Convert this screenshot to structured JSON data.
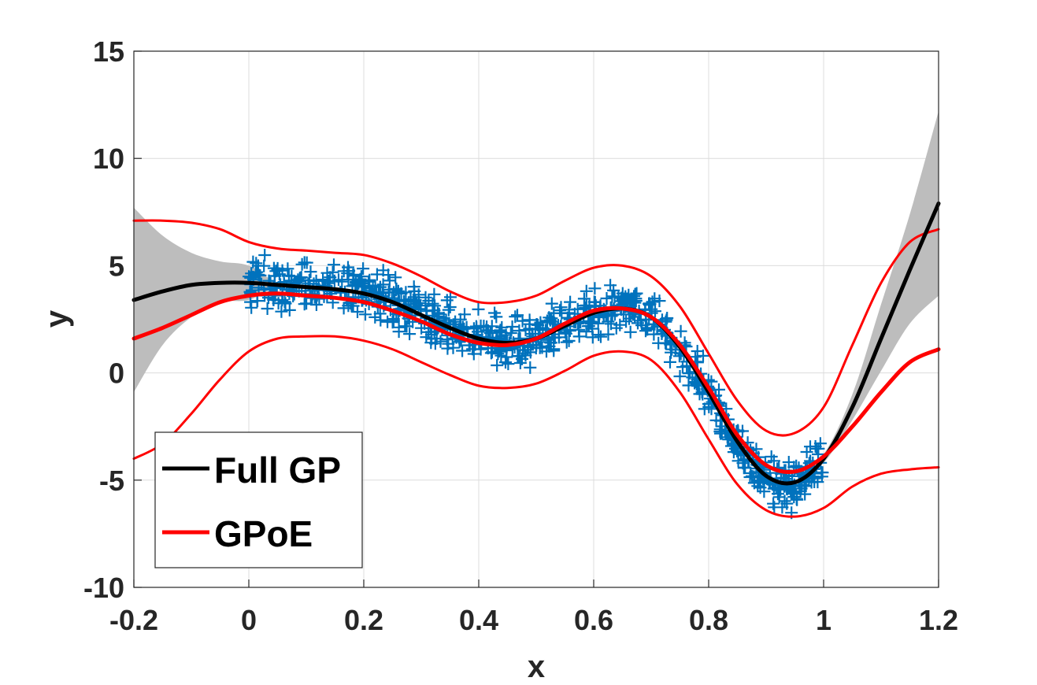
{
  "chart_data": {
    "type": "line",
    "title": "",
    "xlabel": "x",
    "ylabel": "y",
    "xlim": [
      -0.2,
      1.2
    ],
    "ylim": [
      -10,
      15
    ],
    "xticks": [
      "-0.2",
      "0",
      "0.2",
      "0.4",
      "0.6",
      "0.8",
      "1",
      "1.2"
    ],
    "yticks": [
      "-10",
      "-5",
      "0",
      "5",
      "10",
      "15"
    ],
    "grid": true,
    "legend_position": "bottom-left",
    "legend": [
      {
        "name": "Full GP",
        "color": "#000000"
      },
      {
        "name": "GPoE",
        "color": "#ff0000"
      }
    ],
    "observations": {
      "marker": "plus",
      "color": "#0072bd",
      "x_range": [
        0,
        1
      ],
      "noise_amplitude": 1.0,
      "count": 900
    },
    "series": [
      {
        "name": "Full GP",
        "role": "mean",
        "color": "#000000",
        "x": [
          -0.2,
          -0.15,
          -0.1,
          -0.05,
          0,
          0.05,
          0.1,
          0.15,
          0.2,
          0.25,
          0.3,
          0.35,
          0.4,
          0.45,
          0.5,
          0.55,
          0.6,
          0.65,
          0.7,
          0.75,
          0.8,
          0.85,
          0.9,
          0.95,
          1.0,
          1.05,
          1.1,
          1.15,
          1.2
        ],
        "y": [
          3.4,
          3.8,
          4.1,
          4.2,
          4.2,
          4.1,
          4.0,
          3.9,
          3.7,
          3.3,
          2.7,
          2.1,
          1.6,
          1.4,
          1.6,
          2.2,
          2.8,
          3.0,
          2.6,
          1.2,
          -0.9,
          -3.2,
          -4.8,
          -5.1,
          -4.0,
          -1.6,
          1.6,
          4.8,
          7.9
        ]
      },
      {
        "name": "Full GP confidence band",
        "role": "band",
        "color": "#bdbdbd",
        "x": [
          -0.2,
          -0.15,
          -0.1,
          -0.05,
          0,
          0.05,
          0.1,
          0.15,
          0.2,
          0.25,
          0.3,
          0.35,
          0.4,
          0.45,
          0.5,
          0.55,
          0.6,
          0.65,
          0.7,
          0.75,
          0.8,
          0.85,
          0.9,
          0.95,
          1.0,
          1.05,
          1.1,
          1.15,
          1.2
        ],
        "upper": [
          7.7,
          6.4,
          5.6,
          5.2,
          5.0,
          4.2,
          4.1,
          4.0,
          3.8,
          3.4,
          2.8,
          2.2,
          1.7,
          1.5,
          1.7,
          2.3,
          2.9,
          3.1,
          2.7,
          1.3,
          -0.8,
          -3.1,
          -4.7,
          -5.0,
          -3.8,
          -1.0,
          3.2,
          7.4,
          12.2
        ],
        "lower": [
          -0.9,
          1.3,
          2.6,
          3.3,
          3.4,
          4.0,
          3.9,
          3.8,
          3.6,
          3.2,
          2.6,
          2.0,
          1.5,
          1.3,
          1.5,
          2.1,
          2.7,
          2.9,
          2.5,
          1.1,
          -1.0,
          -3.3,
          -4.9,
          -5.2,
          -4.2,
          -2.2,
          0.1,
          2.3,
          3.6
        ]
      },
      {
        "name": "GPoE",
        "role": "mean",
        "color": "#ff0000",
        "x": [
          -0.2,
          -0.15,
          -0.1,
          -0.05,
          0,
          0.05,
          0.1,
          0.15,
          0.2,
          0.25,
          0.3,
          0.35,
          0.4,
          0.45,
          0.5,
          0.55,
          0.6,
          0.65,
          0.7,
          0.75,
          0.8,
          0.85,
          0.9,
          0.95,
          1.0,
          1.05,
          1.1,
          1.15,
          1.2
        ],
        "y": [
          1.6,
          2.1,
          2.7,
          3.3,
          3.6,
          3.7,
          3.6,
          3.5,
          3.3,
          2.9,
          2.4,
          1.8,
          1.4,
          1.3,
          1.6,
          2.3,
          2.9,
          3.0,
          2.6,
          1.3,
          -0.7,
          -2.9,
          -4.3,
          -4.6,
          -3.9,
          -2.5,
          -0.9,
          0.5,
          1.1
        ]
      },
      {
        "name": "GPoE upper bound",
        "role": "bound",
        "color": "#ff0000",
        "x": [
          -0.2,
          -0.15,
          -0.1,
          -0.05,
          0,
          0.05,
          0.1,
          0.15,
          0.2,
          0.25,
          0.3,
          0.35,
          0.4,
          0.45,
          0.5,
          0.55,
          0.6,
          0.65,
          0.7,
          0.75,
          0.8,
          0.85,
          0.9,
          0.95,
          1.0,
          1.05,
          1.1,
          1.15,
          1.2
        ],
        "y": [
          7.1,
          7.1,
          7.0,
          6.7,
          6.1,
          5.8,
          5.7,
          5.6,
          5.5,
          5.1,
          4.5,
          3.8,
          3.3,
          3.3,
          3.6,
          4.3,
          4.9,
          5.0,
          4.5,
          3.1,
          0.9,
          -1.3,
          -2.7,
          -2.8,
          -1.6,
          1.3,
          4.2,
          6.1,
          6.7
        ]
      },
      {
        "name": "GPoE lower bound",
        "role": "bound",
        "color": "#ff0000",
        "x": [
          -0.2,
          -0.15,
          -0.1,
          -0.05,
          0,
          0.05,
          0.1,
          0.15,
          0.2,
          0.25,
          0.3,
          0.35,
          0.4,
          0.45,
          0.5,
          0.55,
          0.6,
          0.65,
          0.7,
          0.75,
          0.8,
          0.85,
          0.9,
          0.95,
          1.0,
          1.05,
          1.1,
          1.15,
          1.2
        ],
        "y": [
          -4.0,
          -3.3,
          -1.9,
          -0.3,
          1.0,
          1.6,
          1.7,
          1.7,
          1.5,
          1.1,
          0.5,
          -0.1,
          -0.6,
          -0.7,
          -0.5,
          0.1,
          0.8,
          1.0,
          0.6,
          -0.9,
          -3.1,
          -5.2,
          -6.4,
          -6.7,
          -6.3,
          -5.3,
          -4.7,
          -4.5,
          -4.4
        ]
      }
    ]
  }
}
